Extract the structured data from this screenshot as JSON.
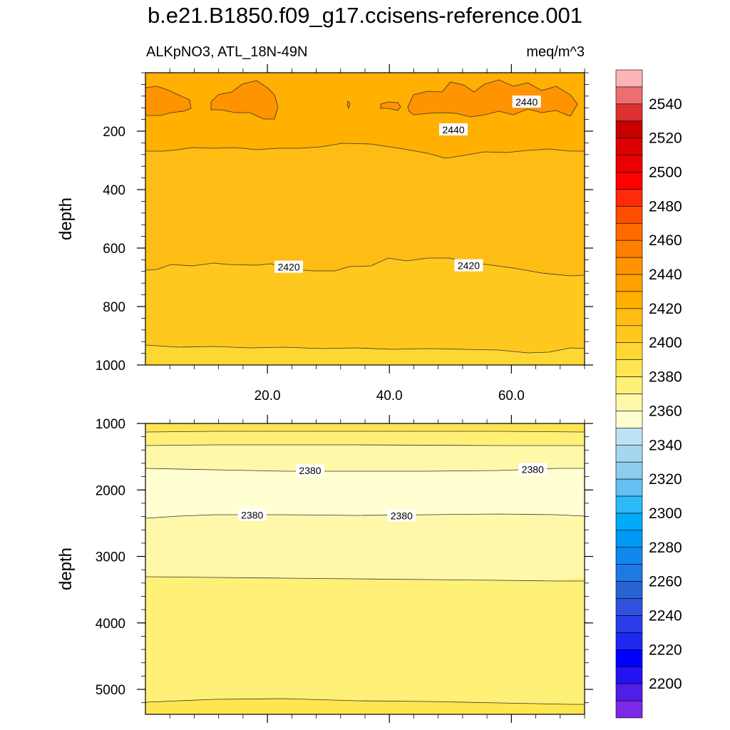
{
  "chart_data": {
    "type": "contour",
    "title": "b.e21.B1850.f09_g17.ccisens-reference.001",
    "variable_label": "ALKpNO3, ATL_18N-49N",
    "units": "meq/m^3",
    "x_range": [
      0,
      72
    ],
    "x_ticks": [
      "20.0",
      "40.0",
      "60.0"
    ],
    "x_tick_values": [
      20,
      40,
      60
    ],
    "panels": [
      {
        "name": "upper",
        "ylabel": "depth",
        "ylim": [
          0,
          1000
        ],
        "y_ticks": [
          "200",
          "400",
          "600",
          "800",
          "1000"
        ],
        "y_tick_values": [
          200,
          400,
          600,
          800,
          1000
        ],
        "contour_labels": [
          {
            "text": "2440",
            "x": 62.5,
            "y": 100
          },
          {
            "text": "2440",
            "x": 50.5,
            "y": 195
          },
          {
            "text": "2420",
            "x": 23.5,
            "y": 665
          },
          {
            "text": "2420",
            "x": 53,
            "y": 660
          }
        ]
      },
      {
        "name": "lower",
        "ylabel": "depth",
        "ylim": [
          1000,
          5375
        ],
        "y_ticks": [
          "1000",
          "2000",
          "3000",
          "4000",
          "5000"
        ],
        "y_tick_values": [
          1000,
          2000,
          3000,
          4000,
          5000
        ],
        "contour_labels": [
          {
            "text": "2380",
            "x": 27,
            "y": 1710
          },
          {
            "text": "2380",
            "x": 63.5,
            "y": 1690
          },
          {
            "text": "2380",
            "x": 17.5,
            "y": 2380
          },
          {
            "text": "2380",
            "x": 42,
            "y": 2390
          }
        ]
      }
    ],
    "colorbar": {
      "labels": [
        "2540",
        "2520",
        "2500",
        "2480",
        "2460",
        "2440",
        "2420",
        "2400",
        "2380",
        "2360",
        "2340",
        "2320",
        "2300",
        "2280",
        "2260",
        "2240",
        "2220",
        "2200"
      ],
      "colors": [
        "#fbb5b5",
        "#ed6e6e",
        "#dc3232",
        "#c80000",
        "#dc0000",
        "#eb0000",
        "#ff0000",
        "#ff2a0a",
        "#ff4d00",
        "#ff6a00",
        "#ff7f00",
        "#ff9300",
        "#ffa000",
        "#ffb000",
        "#ffbc14",
        "#ffc81e",
        "#ffd732",
        "#ffe650",
        "#fff078",
        "#fff8a8",
        "#ffffd2",
        "#bde3f2",
        "#a4d7ef",
        "#8cccee",
        "#65c1f2",
        "#2bbaf7",
        "#00aaf7",
        "#0099f4",
        "#1188ef",
        "#1e78e6",
        "#2664d6",
        "#3050de",
        "#2b3deb",
        "#1e28f0",
        "#0000ff",
        "#2412f0",
        "#501ee6",
        "#7d28e6"
      ]
    }
  }
}
